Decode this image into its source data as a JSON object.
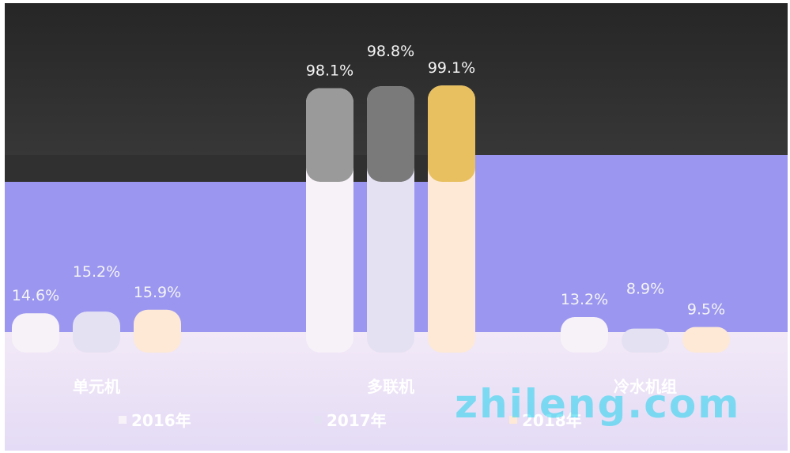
{
  "chart_data": {
    "type": "bar",
    "categories": [
      "单元机",
      "多联机",
      "冷水机组"
    ],
    "series": [
      {
        "name": "2016年",
        "values": [
          14.6,
          98.1,
          13.2
        ]
      },
      {
        "name": "2017年",
        "values": [
          15.2,
          98.8,
          8.9
        ]
      },
      {
        "name": "2018年",
        "values": [
          15.9,
          99.1,
          9.5
        ]
      }
    ],
    "data_labels": [
      [
        "14.6%",
        "15.2%",
        "15.9%"
      ],
      [
        "98.1%",
        "98.8%",
        "99.1%"
      ],
      [
        "13.2%",
        "8.9%",
        "9.5%"
      ]
    ],
    "legend_placement": "bottom",
    "grid": false
  },
  "colors": {
    "series": [
      "#f7f2f8",
      "#e4e1f2",
      "#fde9d6"
    ],
    "top_caps": [
      "#9a9a9a",
      "#7a7a7a",
      "#e8c060"
    ],
    "label_text": "#f4f4f4",
    "watermark": "#22d3ee"
  },
  "watermark": "zhileng.com"
}
